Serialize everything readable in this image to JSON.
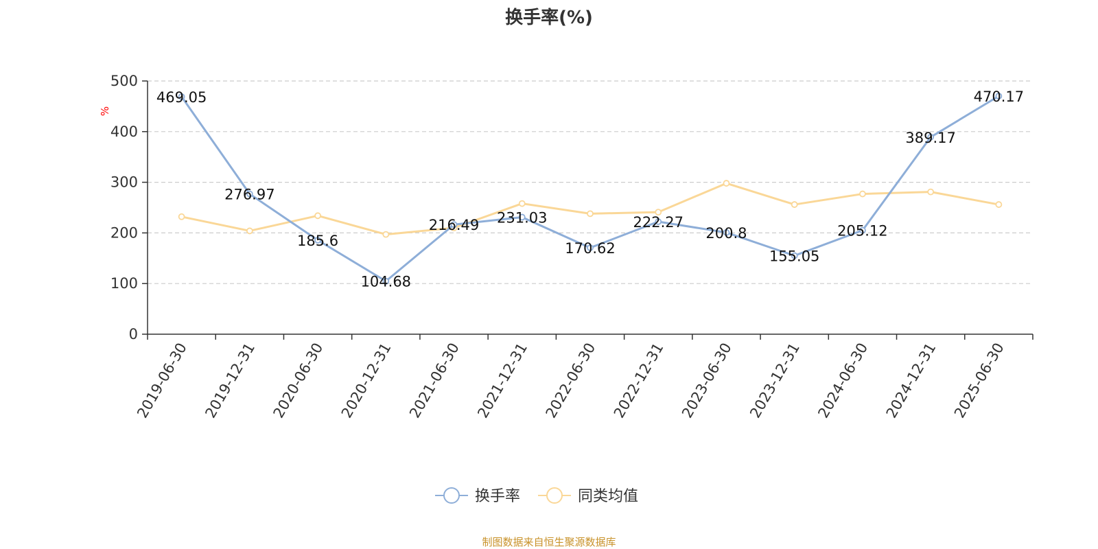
{
  "chart_data": {
    "type": "line",
    "title": "换手率(%)",
    "ylabel": "%",
    "ylim": [
      0,
      500
    ],
    "yticks": [
      0,
      100,
      200,
      300,
      400,
      500
    ],
    "grid": true,
    "legend_position": "bottom",
    "categories": [
      "2019-06-30",
      "2019-12-31",
      "2020-06-30",
      "2020-12-31",
      "2021-06-30",
      "2021-12-31",
      "2022-06-30",
      "2022-12-31",
      "2023-06-30",
      "2023-12-31",
      "2024-06-30",
      "2024-12-31",
      "2025-06-30"
    ],
    "series": [
      {
        "name": "换手率",
        "color": "#8eaed8",
        "values": [
          469.05,
          276.97,
          185.6,
          104.68,
          216.49,
          231.03,
          170.62,
          222.27,
          200.8,
          155.05,
          205.12,
          389.17,
          470.17
        ],
        "labels": [
          "469.05",
          "276.97",
          "185.6",
          "104.68",
          "216.49",
          "231.03",
          "170.62",
          "222.27",
          "200.8",
          "155.05",
          "205.12",
          "389.17",
          "470.17"
        ]
      },
      {
        "name": "同类均值",
        "color": "#fad797",
        "values": [
          232,
          204,
          234,
          197,
          210,
          258,
          238,
          241,
          298,
          256,
          277,
          281,
          256
        ]
      }
    ]
  },
  "colors": {
    "axis": "#333333",
    "grid": "#cccccc",
    "unit_label": "#ff0000",
    "source_text": "#c8922a"
  },
  "source": "制图数据来自恒生聚源数据库"
}
